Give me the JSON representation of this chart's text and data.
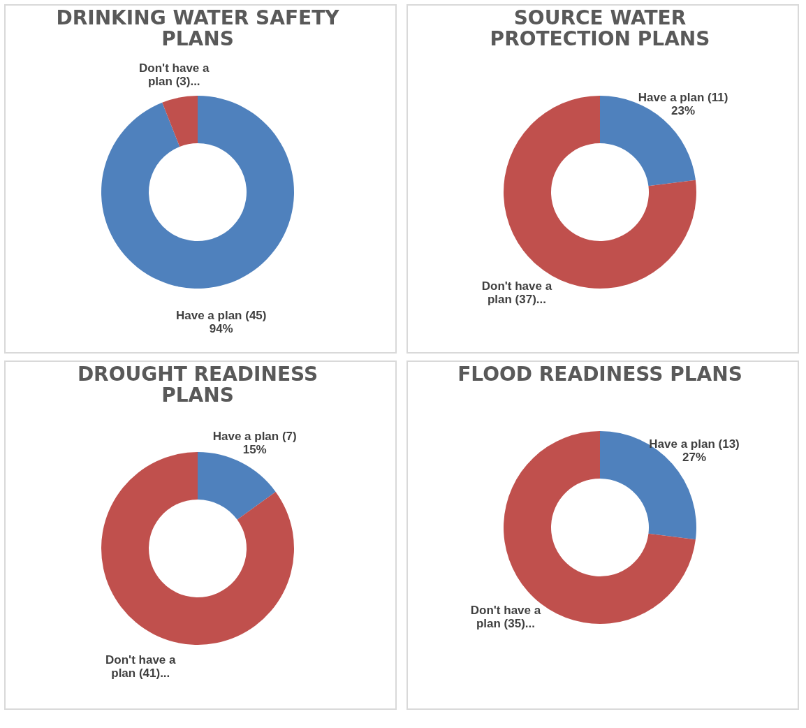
{
  "chart_data": [
    {
      "type": "donut",
      "title": "DRINKING WATER SAFETY PLANS",
      "categories": [
        "Have a plan (45)",
        "Don't have a plan (3)..."
      ],
      "values": [
        94,
        6
      ],
      "colors": [
        "#4f81bd",
        "#c0504d"
      ],
      "value_labels": [
        "94%",
        null
      ],
      "legend": false
    },
    {
      "type": "donut",
      "title": "SOURCE WATER PROTECTION PLANS",
      "categories": [
        "Have a plan (11)",
        "Don't have a plan (37)..."
      ],
      "values": [
        23,
        77
      ],
      "colors": [
        "#4f81bd",
        "#c0504d"
      ],
      "value_labels": [
        "23%",
        null
      ],
      "legend": false
    },
    {
      "type": "donut",
      "title": "DROUGHT READINESS PLANS",
      "categories": [
        "Have a plan (7)",
        "Don't have a plan (41)..."
      ],
      "values": [
        15,
        85
      ],
      "colors": [
        "#4f81bd",
        "#c0504d"
      ],
      "value_labels": [
        "15%",
        null
      ],
      "legend": false
    },
    {
      "type": "donut",
      "title": "FLOOD READINESS PLANS",
      "categories": [
        "Have a plan (13)",
        "Don't have a plan (35)..."
      ],
      "values": [
        27,
        73
      ],
      "colors": [
        "#4f81bd",
        "#c0504d"
      ],
      "value_labels": [
        "27%",
        null
      ],
      "legend": false
    }
  ]
}
